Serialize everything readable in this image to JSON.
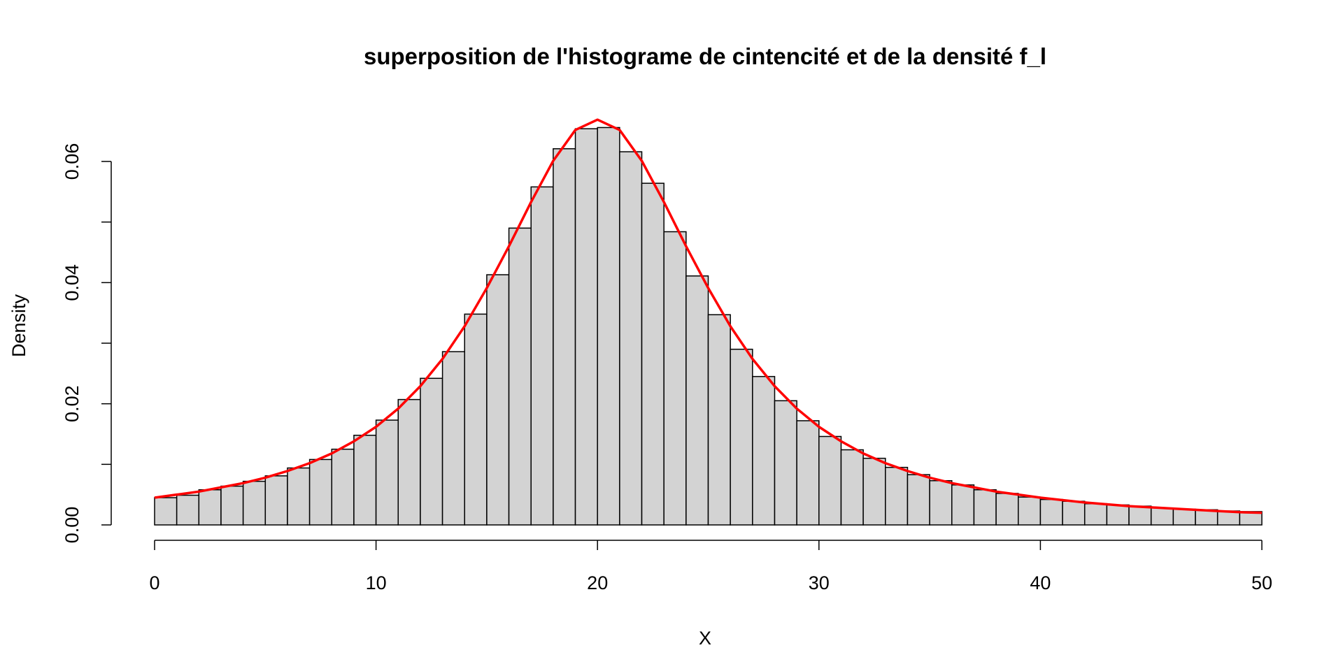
{
  "chart_data": {
    "type": "bar",
    "title": "superposition de l'histograme de cintencité et de la densité f_l",
    "xlabel": "X",
    "ylabel": "Density",
    "xlim": [
      0,
      50
    ],
    "ylim": [
      0,
      0.06
    ],
    "x_ticks": [
      "0",
      "10",
      "20",
      "30",
      "40",
      "50"
    ],
    "y_ticks": [
      "0.00",
      "0.02",
      "0.04",
      "0.06"
    ],
    "grid": false,
    "bin_width": 1,
    "bin_edges_start": 0,
    "bar_fill": "#d3d3d3",
    "bar_stroke": "#000000",
    "line_color": "#ff0000",
    "series": [
      {
        "type": "histogram",
        "values": [
          0.0045,
          0.0049,
          0.0058,
          0.0064,
          0.0072,
          0.0081,
          0.0094,
          0.0108,
          0.0125,
          0.0148,
          0.0173,
          0.0207,
          0.0242,
          0.0286,
          0.0348,
          0.0413,
          0.049,
          0.0558,
          0.0621,
          0.0654,
          0.0656,
          0.0616,
          0.0564,
          0.0484,
          0.0411,
          0.0347,
          0.029,
          0.0245,
          0.0205,
          0.0172,
          0.0146,
          0.0124,
          0.011,
          0.0095,
          0.0083,
          0.0073,
          0.0066,
          0.0058,
          0.0052,
          0.0046,
          0.0042,
          0.0039,
          0.0035,
          0.0033,
          0.0031,
          0.0028,
          0.0026,
          0.0025,
          0.0023,
          0.0022
        ]
      },
      {
        "type": "line",
        "x": [
          0,
          1,
          2,
          3,
          4,
          5,
          6,
          7,
          8,
          9,
          10,
          11,
          12,
          13,
          14,
          15,
          16,
          17,
          18,
          19,
          20,
          21,
          22,
          23,
          24,
          25,
          26,
          27,
          28,
          29,
          30,
          31,
          32,
          33,
          34,
          35,
          36,
          37,
          38,
          39,
          40,
          41,
          42,
          43,
          44,
          45,
          46,
          47,
          48,
          49,
          50
        ],
        "y": [
          0.0045,
          0.005,
          0.0055,
          0.0062,
          0.0069,
          0.0078,
          0.0089,
          0.0102,
          0.0118,
          0.0138,
          0.0162,
          0.0192,
          0.0229,
          0.0274,
          0.0328,
          0.0391,
          0.046,
          0.0533,
          0.0601,
          0.0652,
          0.0669,
          0.0652,
          0.0601,
          0.0533,
          0.046,
          0.0391,
          0.0328,
          0.0274,
          0.0229,
          0.0192,
          0.0162,
          0.0138,
          0.0118,
          0.0102,
          0.0089,
          0.0078,
          0.0069,
          0.0062,
          0.0055,
          0.005,
          0.0045,
          0.0041,
          0.0037,
          0.0034,
          0.0031,
          0.0029,
          0.0027,
          0.0025,
          0.0023,
          0.0021,
          0.002
        ]
      }
    ]
  }
}
